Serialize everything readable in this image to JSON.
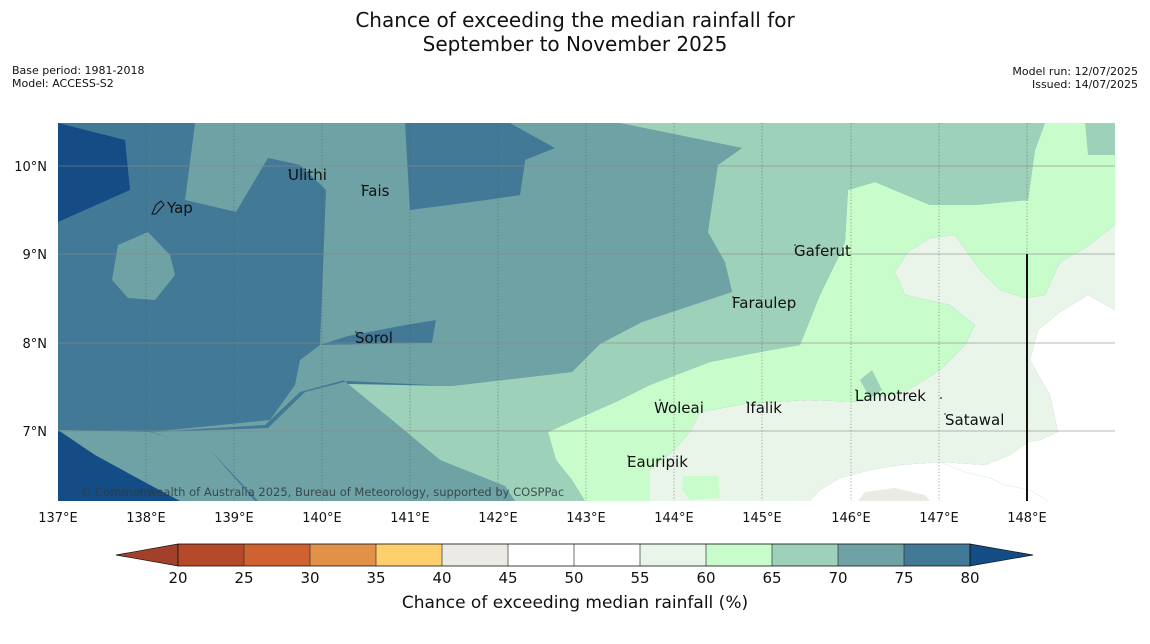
{
  "title": {
    "line1": "Chance of exceeding the median rainfall for",
    "line2": "September to November 2025"
  },
  "meta": {
    "base_period": "Base period: 1981-2018",
    "model": "Model: ACCESS-S2",
    "model_run": "Model run: 12/07/2025",
    "issued": "Issued: 14/07/2025"
  },
  "map": {
    "lon_ticks": [
      "137°E",
      "138°E",
      "139°E",
      "140°E",
      "141°E",
      "142°E",
      "143°E",
      "144°E",
      "145°E",
      "146°E",
      "147°E",
      "148°E"
    ],
    "lat_ticks": [
      "10°N",
      "9°N",
      "8°N",
      "7°N"
    ],
    "places": [
      "Yap",
      "Ulithi",
      "Fais",
      "Gaferut",
      "Faraulep",
      "Sorol",
      "Lamotrek",
      "Woleai",
      "Ifalik",
      "Satawal",
      "Eauripik"
    ],
    "copyright": "© Commonwealth of Australia 2025, Bureau of Meteorology, supported by COSPPac",
    "category_colors": {
      "lt_20": "#a3402a",
      "20_25": "#b5492a",
      "25_30": "#cf6230",
      "30_35": "#e29148",
      "35_40": "#fecf6a",
      "40_45": "#ebeae5",
      "45_50": "#ffffff",
      "50_55": "#ffffff",
      "55_60": "#eaf5ea",
      "60_65": "#c8fccb",
      "65_70": "#9ed1b9",
      "70_75": "#6ea2a5",
      "75_80": "#427996",
      "gt_80": "#144c86"
    }
  },
  "colorbar": {
    "ticks": [
      "20",
      "25",
      "30",
      "35",
      "40",
      "45",
      "50",
      "55",
      "60",
      "65",
      "70",
      "75",
      "80"
    ],
    "label": "Chance of exceeding median rainfall (%)"
  }
}
